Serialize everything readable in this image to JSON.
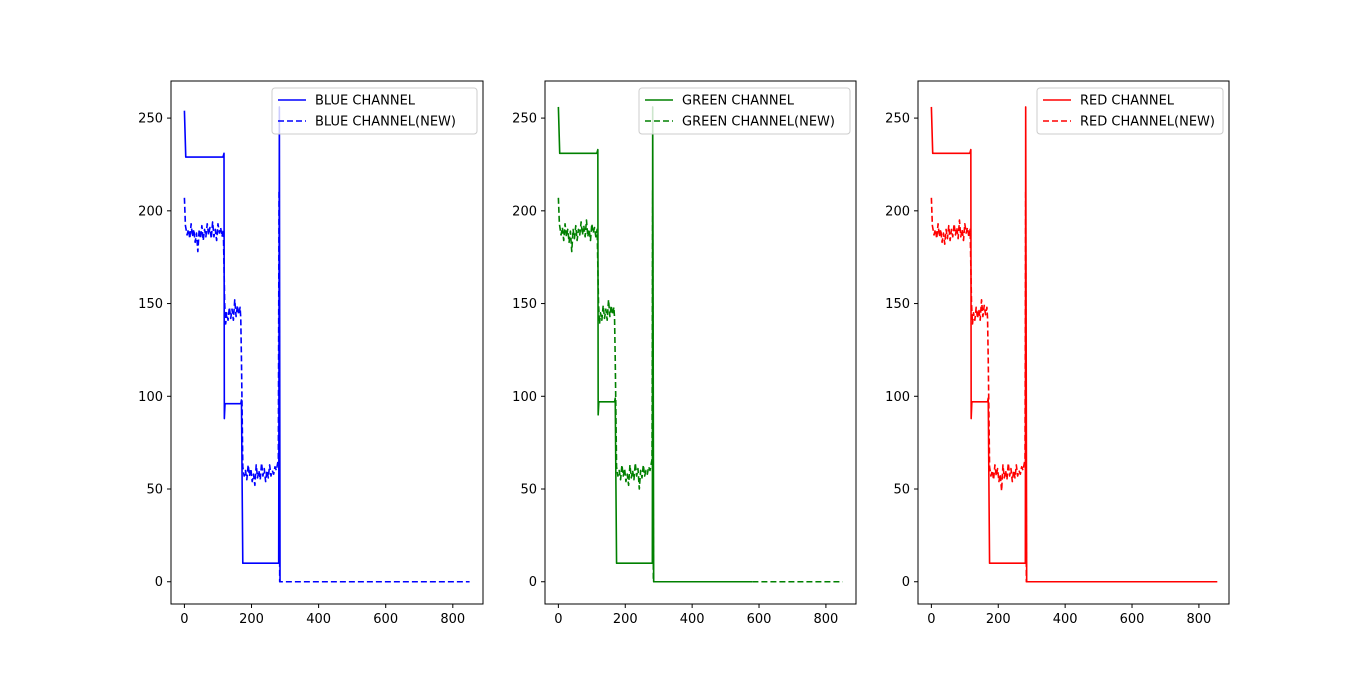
{
  "chart_data": [
    {
      "type": "line",
      "xlim": [
        -40,
        890
      ],
      "ylim": [
        -12,
        270
      ],
      "x_ticks": [
        0,
        200,
        400,
        600,
        800
      ],
      "y_ticks": [
        0,
        50,
        100,
        150,
        200,
        250
      ],
      "grid": false,
      "legend_position": "upper right",
      "series": [
        {
          "name": "BLUE CHANNEL",
          "color": "#0000ff",
          "linestyle": "solid",
          "points": [
            [
              0,
              254
            ],
            [
              4,
              229
            ],
            [
              115,
              229
            ],
            [
              118,
              231
            ],
            [
              119,
              88
            ],
            [
              121,
              96
            ],
            [
              168,
              96
            ],
            [
              170,
              98
            ],
            [
              174,
              10
            ],
            [
              281,
              10
            ],
            [
              283,
              256
            ],
            [
              285,
              0
            ]
          ]
        },
        {
          "name": "BLUE CHANNEL(NEW)",
          "color": "#0000ff",
          "linestyle": "dashed",
          "points": [
            [
              0,
              207
            ],
            [
              3,
              192
            ],
            [
              8,
              187
            ],
            [
              12,
              190
            ],
            [
              16,
              185
            ],
            [
              20,
              193
            ],
            [
              24,
              186
            ],
            [
              28,
              190
            ],
            [
              32,
              183
            ],
            [
              36,
              188
            ],
            [
              40,
              178
            ],
            [
              44,
              190
            ],
            [
              48,
              185
            ],
            [
              52,
              192
            ],
            [
              56,
              184
            ],
            [
              60,
              190
            ],
            [
              64,
              186
            ],
            [
              68,
              193
            ],
            [
              72,
              187
            ],
            [
              76,
              191
            ],
            [
              80,
              185
            ],
            [
              84,
              194
            ],
            [
              88,
              186
            ],
            [
              92,
              190
            ],
            [
              96,
              184
            ],
            [
              100,
              193
            ],
            [
              104,
              188
            ],
            [
              108,
              191
            ],
            [
              112,
              186
            ],
            [
              116,
              190
            ],
            [
              118,
              170
            ],
            [
              120,
              150
            ],
            [
              123,
              139
            ],
            [
              126,
              145
            ],
            [
              130,
              141
            ],
            [
              134,
              148
            ],
            [
              138,
              142
            ],
            [
              142,
              147
            ],
            [
              146,
              141
            ],
            [
              150,
              152
            ],
            [
              154,
              143
            ],
            [
              158,
              149
            ],
            [
              162,
              144
            ],
            [
              166,
              148
            ],
            [
              168,
              142
            ],
            [
              170,
              120
            ],
            [
              172,
              92
            ],
            [
              174,
              62
            ],
            [
              178,
              57
            ],
            [
              182,
              60
            ],
            [
              186,
              55
            ],
            [
              190,
              63
            ],
            [
              194,
              57
            ],
            [
              198,
              61
            ],
            [
              202,
              54
            ],
            [
              206,
              58
            ],
            [
              210,
              52
            ],
            [
              214,
              63
            ],
            [
              218,
              56
            ],
            [
              222,
              60
            ],
            [
              226,
              55
            ],
            [
              230,
              64
            ],
            [
              234,
              57
            ],
            [
              238,
              61
            ],
            [
              242,
              54
            ],
            [
              246,
              60
            ],
            [
              250,
              56
            ],
            [
              254,
              63
            ],
            [
              258,
              57
            ],
            [
              262,
              60
            ],
            [
              266,
              58
            ],
            [
              270,
              62
            ],
            [
              274,
              60
            ],
            [
              278,
              64
            ],
            [
              280,
              66
            ],
            [
              282,
              211
            ],
            [
              284,
              0
            ],
            [
              850,
              0
            ]
          ]
        }
      ]
    },
    {
      "type": "line",
      "xlim": [
        -40,
        890
      ],
      "ylim": [
        -12,
        270
      ],
      "x_ticks": [
        0,
        200,
        400,
        600,
        800
      ],
      "y_ticks": [
        0,
        50,
        100,
        150,
        200,
        250
      ],
      "grid": false,
      "legend_position": "upper right",
      "series": [
        {
          "name": "GREEN CHANNEL",
          "color": "#008000",
          "linestyle": "solid",
          "points": [
            [
              0,
              256
            ],
            [
              4,
              231
            ],
            [
              115,
              231
            ],
            [
              118,
              233
            ],
            [
              119,
              90
            ],
            [
              121,
              97
            ],
            [
              168,
              97
            ],
            [
              170,
              99
            ],
            [
              174,
              10
            ],
            [
              281,
              10
            ],
            [
              282,
              256
            ],
            [
              285,
              0
            ],
            [
              580,
              0
            ]
          ]
        },
        {
          "name": "GREEN CHANNEL(NEW)",
          "color": "#008000",
          "linestyle": "dashed",
          "points": [
            [
              0,
              207
            ],
            [
              3,
              193
            ],
            [
              8,
              187
            ],
            [
              12,
              191
            ],
            [
              16,
              184
            ],
            [
              20,
              193
            ],
            [
              24,
              186
            ],
            [
              28,
              190
            ],
            [
              32,
              183
            ],
            [
              36,
              189
            ],
            [
              40,
              178
            ],
            [
              44,
              190
            ],
            [
              48,
              185
            ],
            [
              52,
              192
            ],
            [
              56,
              184
            ],
            [
              60,
              190
            ],
            [
              64,
              187
            ],
            [
              68,
              194
            ],
            [
              72,
              187
            ],
            [
              76,
              192
            ],
            [
              80,
              186
            ],
            [
              84,
              195
            ],
            [
              88,
              186
            ],
            [
              92,
              190
            ],
            [
              96,
              184
            ],
            [
              100,
              193
            ],
            [
              104,
              188
            ],
            [
              108,
              191
            ],
            [
              112,
              186
            ],
            [
              116,
              190
            ],
            [
              118,
              170
            ],
            [
              120,
              150
            ],
            [
              123,
              139
            ],
            [
              126,
              145
            ],
            [
              130,
              141
            ],
            [
              134,
              149
            ],
            [
              138,
              142
            ],
            [
              142,
              147
            ],
            [
              146,
              141
            ],
            [
              150,
              152
            ],
            [
              154,
              143
            ],
            [
              158,
              149
            ],
            [
              162,
              144
            ],
            [
              166,
              148
            ],
            [
              168,
              142
            ],
            [
              170,
              120
            ],
            [
              172,
              92
            ],
            [
              174,
              62
            ],
            [
              178,
              57
            ],
            [
              182,
              60
            ],
            [
              186,
              55
            ],
            [
              190,
              63
            ],
            [
              194,
              57
            ],
            [
              198,
              61
            ],
            [
              202,
              54
            ],
            [
              206,
              58
            ],
            [
              210,
              52
            ],
            [
              214,
              63
            ],
            [
              218,
              56
            ],
            [
              222,
              60
            ],
            [
              226,
              55
            ],
            [
              230,
              64
            ],
            [
              234,
              57
            ],
            [
              238,
              61
            ],
            [
              242,
              50
            ],
            [
              246,
              60
            ],
            [
              250,
              56
            ],
            [
              254,
              63
            ],
            [
              258,
              57
            ],
            [
              262,
              60
            ],
            [
              266,
              58
            ],
            [
              270,
              62
            ],
            [
              274,
              60
            ],
            [
              278,
              64
            ],
            [
              280,
              66
            ],
            [
              282,
              211
            ],
            [
              284,
              0
            ],
            [
              850,
              0
            ]
          ]
        }
      ]
    },
    {
      "type": "line",
      "xlim": [
        -40,
        890
      ],
      "ylim": [
        -12,
        270
      ],
      "x_ticks": [
        0,
        200,
        400,
        600,
        800
      ],
      "y_ticks": [
        0,
        50,
        100,
        150,
        200,
        250
      ],
      "grid": false,
      "legend_position": "upper right",
      "series": [
        {
          "name": "RED CHANNEL",
          "color": "#ff0000",
          "linestyle": "solid",
          "points": [
            [
              0,
              256
            ],
            [
              4,
              231
            ],
            [
              115,
              231
            ],
            [
              118,
              233
            ],
            [
              119,
              88
            ],
            [
              121,
              97
            ],
            [
              168,
              97
            ],
            [
              170,
              99
            ],
            [
              174,
              10
            ],
            [
              281,
              10
            ],
            [
              282,
              256
            ],
            [
              285,
              0
            ],
            [
              855,
              0
            ]
          ]
        },
        {
          "name": "RED CHANNEL(NEW)",
          "color": "#ff0000",
          "linestyle": "dashed",
          "points": [
            [
              0,
              207
            ],
            [
              3,
              192
            ],
            [
              8,
              187
            ],
            [
              12,
              190
            ],
            [
              16,
              185
            ],
            [
              20,
              193
            ],
            [
              24,
              186
            ],
            [
              28,
              190
            ],
            [
              32,
              183
            ],
            [
              36,
              188
            ],
            [
              40,
              182
            ],
            [
              44,
              190
            ],
            [
              48,
              185
            ],
            [
              52,
              192
            ],
            [
              56,
              184
            ],
            [
              60,
              190
            ],
            [
              64,
              186
            ],
            [
              68,
              193
            ],
            [
              72,
              187
            ],
            [
              76,
              191
            ],
            [
              80,
              185
            ],
            [
              84,
              195
            ],
            [
              88,
              186
            ],
            [
              92,
              190
            ],
            [
              96,
              184
            ],
            [
              100,
              193
            ],
            [
              104,
              188
            ],
            [
              108,
              191
            ],
            [
              112,
              186
            ],
            [
              116,
              190
            ],
            [
              118,
              170
            ],
            [
              120,
              150
            ],
            [
              123,
              139
            ],
            [
              126,
              145
            ],
            [
              130,
              141
            ],
            [
              134,
              148
            ],
            [
              138,
              142
            ],
            [
              142,
              147
            ],
            [
              146,
              141
            ],
            [
              150,
              152
            ],
            [
              154,
              143
            ],
            [
              158,
              149
            ],
            [
              162,
              144
            ],
            [
              166,
              148
            ],
            [
              168,
              142
            ],
            [
              170,
              120
            ],
            [
              172,
              92
            ],
            [
              174,
              62
            ],
            [
              178,
              57
            ],
            [
              182,
              60
            ],
            [
              186,
              55
            ],
            [
              190,
              63
            ],
            [
              194,
              57
            ],
            [
              198,
              61
            ],
            [
              202,
              54
            ],
            [
              206,
              58
            ],
            [
              210,
              49
            ],
            [
              214,
              63
            ],
            [
              218,
              56
            ],
            [
              222,
              60
            ],
            [
              226,
              55
            ],
            [
              230,
              64
            ],
            [
              234,
              57
            ],
            [
              238,
              61
            ],
            [
              242,
              54
            ],
            [
              246,
              60
            ],
            [
              250,
              56
            ],
            [
              254,
              63
            ],
            [
              258,
              57
            ],
            [
              262,
              60
            ],
            [
              266,
              58
            ],
            [
              270,
              62
            ],
            [
              274,
              60
            ],
            [
              278,
              64
            ],
            [
              280,
              66
            ],
            [
              282,
              211
            ],
            [
              284,
              0
            ],
            [
              850,
              0
            ]
          ]
        }
      ]
    }
  ]
}
